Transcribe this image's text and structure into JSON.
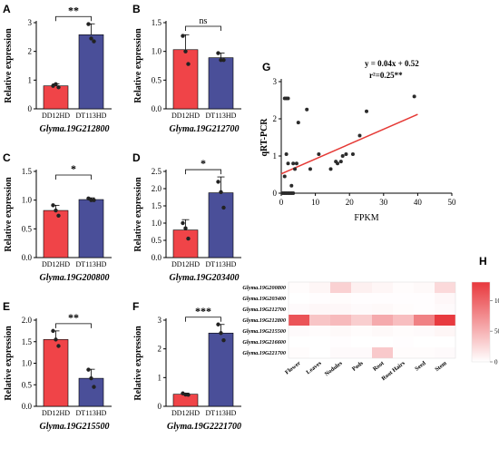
{
  "colors": {
    "bar_dd12hd": "#f04448",
    "bar_dt113hd": "#4a4f99",
    "regression_line": "#e53935",
    "scatter_point": "#2b2b2b",
    "heatmap_high": "#e8373c",
    "heatmap_low": "#ffffff"
  },
  "chart_data": [
    {
      "type": "bar",
      "panel": "A",
      "gene": "Glyma.19G212800",
      "ylabel": "Relative expression",
      "categories": [
        "DD12HD",
        "DT113HD"
      ],
      "values": [
        0.8,
        2.58
      ],
      "error": [
        0.07,
        0.38
      ],
      "points": [
        [
          0.8,
          0.86,
          0.75
        ],
        [
          2.95,
          2.45,
          2.35
        ]
      ],
      "ylim": [
        0,
        3.0
      ],
      "yticks": [
        "0",
        "1",
        "2",
        "3"
      ],
      "significance": "**"
    },
    {
      "type": "bar",
      "panel": "B",
      "gene": "Glyma.19G212700",
      "ylabel": "Relative expression",
      "categories": [
        "DD12HD",
        "DT113HD"
      ],
      "values": [
        1.03,
        0.89
      ],
      "error": [
        0.26,
        0.08
      ],
      "points": [
        [
          1.27,
          1.0,
          0.78
        ],
        [
          0.97,
          0.85,
          0.85
        ]
      ],
      "ylim": [
        0,
        1.5
      ],
      "yticks": [
        "0.0",
        "0.5",
        "1.0",
        "1.5"
      ],
      "significance": "ns"
    },
    {
      "type": "bar",
      "panel": "C",
      "gene": "Glyma.19G200800",
      "ylabel": "Relative expression",
      "categories": [
        "DD12HD",
        "DT113HD"
      ],
      "values": [
        0.82,
        1.01
      ],
      "error": [
        0.09,
        0.03
      ],
      "points": [
        [
          0.91,
          0.82,
          0.73
        ],
        [
          1.03,
          1.0,
          1.0
        ]
      ],
      "ylim": [
        0,
        1.5
      ],
      "yticks": [
        "0.0",
        "0.5",
        "1.0",
        "1.5"
      ],
      "significance": "*"
    },
    {
      "type": "bar",
      "panel": "D",
      "gene": "Glyma.19G203400",
      "ylabel": "Relative expression",
      "categories": [
        "DD12HD",
        "DT113HD"
      ],
      "values": [
        0.8,
        1.88
      ],
      "error": [
        0.3,
        0.46
      ],
      "points": [
        [
          1.0,
          0.85,
          0.55
        ],
        [
          2.2,
          1.9,
          1.45
        ]
      ],
      "ylim": [
        0,
        2.5
      ],
      "yticks": [
        "0.0",
        "0.5",
        "1.0",
        "1.5",
        "2.0",
        "2.5"
      ],
      "significance": "*"
    },
    {
      "type": "bar",
      "panel": "E",
      "gene": "Glyma.19G215500",
      "ylabel": "Relative expression",
      "categories": [
        "DD12HD",
        "DT113HD"
      ],
      "values": [
        1.55,
        0.65
      ],
      "error": [
        0.2,
        0.21
      ],
      "points": [
        [
          1.75,
          1.55,
          1.4
        ],
        [
          0.85,
          0.65,
          0.45
        ]
      ],
      "ylim": [
        0,
        2.0
      ],
      "yticks": [
        "0.0",
        "0.5",
        "1.0",
        "1.5",
        "2.0"
      ],
      "significance": "**"
    },
    {
      "type": "bar",
      "panel": "F",
      "gene": "Glyma.19G2221700",
      "ylabel": "Relative expression",
      "categories": [
        "DD12HD",
        "DT113HD"
      ],
      "values": [
        0.42,
        2.55
      ],
      "error": [
        0.04,
        0.3
      ],
      "points": [
        [
          0.45,
          0.41,
          0.4
        ],
        [
          2.85,
          2.55,
          2.3
        ]
      ],
      "ylim": [
        0,
        3.0
      ],
      "yticks": [
        "0",
        "1",
        "2",
        "3"
      ],
      "significance": "***"
    },
    {
      "type": "scatter",
      "panel": "G",
      "xlabel": "FPKM",
      "ylabel": "qRT-PCR",
      "xlim": [
        0,
        50
      ],
      "ylim": [
        0,
        3
      ],
      "xticks": [
        "0",
        "10",
        "20",
        "30",
        "40",
        "50"
      ],
      "yticks": [
        "0",
        "1",
        "2",
        "3"
      ],
      "equation": "y = 0.04x + 0.52",
      "r2": "r²=0.25**",
      "slope": 0.04,
      "intercept": 0.52,
      "points": [
        [
          0.5,
          0.0
        ],
        [
          1.0,
          0.0
        ],
        [
          1.5,
          0.0
        ],
        [
          2.0,
          0.0
        ],
        [
          2.5,
          0.0
        ],
        [
          3.0,
          0.0
        ],
        [
          3.5,
          0.0
        ],
        [
          1.0,
          2.55
        ],
        [
          1.5,
          2.55
        ],
        [
          2.0,
          2.55
        ],
        [
          1.0,
          0.45
        ],
        [
          1.5,
          1.05
        ],
        [
          2.0,
          0.8
        ],
        [
          3.0,
          0.2
        ],
        [
          3.5,
          0.8
        ],
        [
          4.0,
          0.65
        ],
        [
          4.5,
          0.8
        ],
        [
          5.0,
          1.9
        ],
        [
          7.5,
          2.25
        ],
        [
          8.5,
          0.65
        ],
        [
          11.0,
          1.05
        ],
        [
          14.5,
          0.65
        ],
        [
          16.0,
          0.85
        ],
        [
          16.5,
          0.8
        ],
        [
          17.5,
          0.85
        ],
        [
          18.0,
          1.0
        ],
        [
          19.0,
          1.05
        ],
        [
          21.0,
          1.05
        ],
        [
          23.0,
          1.55
        ],
        [
          25.0,
          2.2
        ],
        [
          39.0,
          2.6
        ]
      ]
    },
    {
      "type": "heatmap",
      "panel": "H",
      "rows": [
        "Glyma.19G200800",
        "Glyma.19G203400",
        "Glyma.19G212700",
        "Glyma.19G212800",
        "Glyma.19G215500",
        "Glyma.19G216600",
        "Glyma.19G221700"
      ],
      "columns": [
        "Flower",
        "Leaves",
        "Nodules",
        "Pods",
        "Root",
        "Root Hairs",
        "Seed",
        "Stem"
      ],
      "values": [
        [
          2,
          6,
          30,
          10,
          6,
          2,
          4,
          25
        ],
        [
          0,
          1,
          2,
          1,
          1,
          1,
          1,
          5
        ],
        [
          3,
          5,
          5,
          3,
          4,
          2,
          1,
          3
        ],
        [
          112,
          38,
          45,
          32,
          55,
          42,
          82,
          128
        ],
        [
          3,
          2,
          4,
          2,
          4,
          2,
          3,
          6
        ],
        [
          0,
          0,
          1,
          0,
          0,
          1,
          0,
          0
        ],
        [
          2,
          0,
          3,
          3,
          35,
          2,
          2,
          3
        ]
      ],
      "vmin": 0,
      "vmax": 130,
      "colorbar_ticks": [
        "0",
        "50",
        "100"
      ]
    }
  ]
}
